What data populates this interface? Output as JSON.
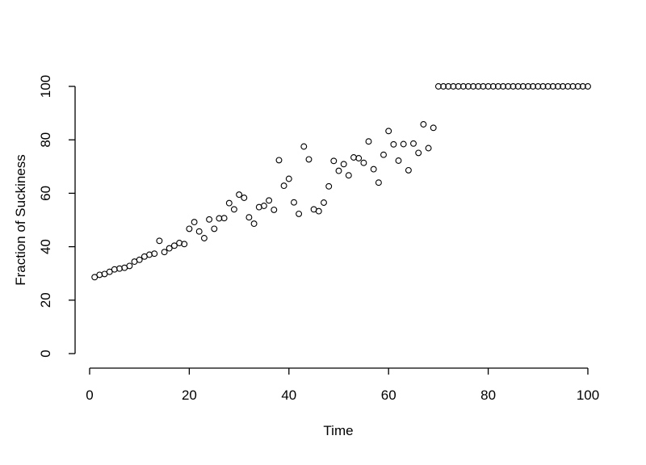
{
  "figure": {
    "background_color": "#ffffff",
    "axis_color": "#000000",
    "point_color": "#000000",
    "title": ""
  },
  "chart_data": {
    "type": "scatter",
    "title": "",
    "xlabel": "Time",
    "ylabel": "Fraction of Suckiness",
    "xlim": [
      0,
      100
    ],
    "ylim": [
      0,
      100
    ],
    "x_ticks": [
      0,
      20,
      40,
      60,
      80,
      100
    ],
    "y_ticks": [
      0,
      20,
      40,
      60,
      80,
      100
    ],
    "grid": false,
    "legend": "none",
    "marker": "open-circle",
    "x": [
      1,
      2,
      3,
      4,
      5,
      6,
      7,
      8,
      9,
      10,
      11,
      12,
      13,
      14,
      15,
      16,
      17,
      18,
      19,
      20,
      21,
      22,
      23,
      24,
      25,
      26,
      27,
      28,
      29,
      30,
      31,
      32,
      33,
      34,
      35,
      36,
      37,
      38,
      39,
      40,
      41,
      42,
      43,
      44,
      45,
      46,
      47,
      48,
      49,
      50,
      51,
      52,
      53,
      54,
      55,
      56,
      57,
      58,
      59,
      60,
      61,
      62,
      63,
      64,
      65,
      66,
      67,
      68,
      69,
      70,
      71,
      72,
      73,
      74,
      75,
      76,
      77,
      78,
      79,
      80,
      81,
      82,
      83,
      84,
      85,
      86,
      87,
      88,
      89,
      90,
      91,
      92,
      93,
      94,
      95,
      96,
      97,
      98,
      99,
      100
    ],
    "y": [
      28.6,
      29.5,
      29.8,
      30.6,
      31.5,
      31.8,
      32.1,
      32.8,
      34.4,
      35.1,
      36.3,
      37.0,
      37.4,
      42.2,
      38.0,
      39.4,
      40.4,
      41.4,
      41.0,
      46.7,
      49.2,
      45.7,
      43.2,
      50.2,
      46.7,
      50.6,
      50.7,
      56.3,
      54.0,
      59.5,
      58.3,
      51.0,
      48.6,
      54.8,
      55.3,
      57.3,
      53.8,
      72.4,
      62.8,
      65.4,
      56.6,
      52.3,
      77.5,
      72.7,
      54.0,
      53.3,
      56.5,
      62.6,
      72.1,
      68.4,
      70.9,
      66.7,
      73.4,
      73.1,
      71.4,
      79.4,
      69.0,
      64.0,
      74.4,
      83.3,
      78.3,
      72.2,
      78.4,
      68.6,
      78.6,
      75.1,
      85.8,
      76.9,
      84.5,
      100,
      100,
      100,
      100,
      100,
      100,
      100,
      100,
      100,
      100,
      100,
      100,
      100,
      100,
      100,
      100,
      100,
      100,
      100,
      100,
      100,
      100,
      100,
      100,
      100,
      100,
      100,
      100,
      100,
      100,
      100
    ]
  }
}
